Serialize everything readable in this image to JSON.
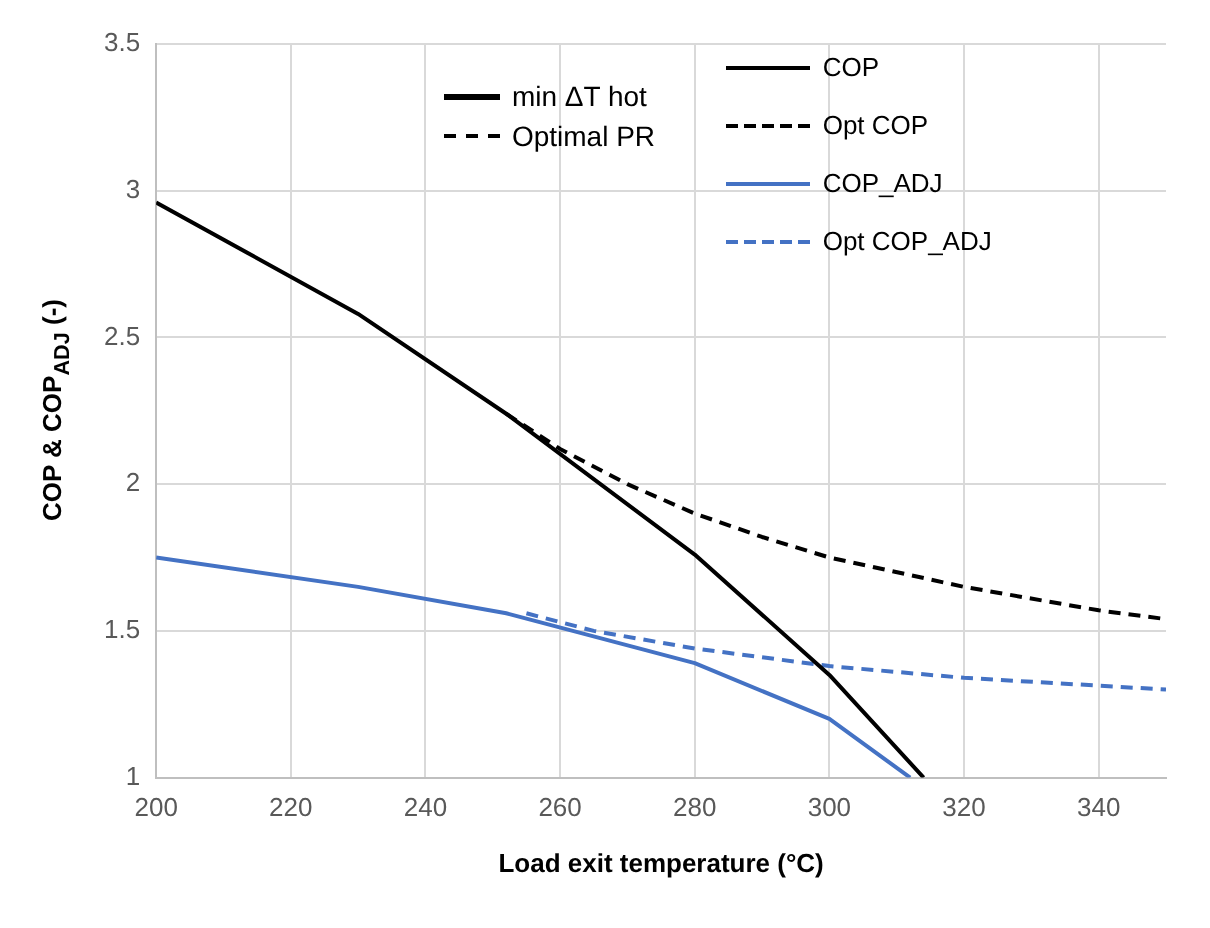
{
  "chart_data": {
    "type": "line",
    "xlabel": "Load exit temperature (°C)",
    "ylabel": "COP & COP$_{ADJ}$ (-)",
    "xlim": [
      200,
      350
    ],
    "xticks": [
      200,
      220,
      240,
      260,
      280,
      300,
      320,
      340
    ],
    "ylim": [
      1,
      3.5
    ],
    "yticks": [
      1,
      1.5,
      2,
      2.5,
      3,
      3.5
    ],
    "grid": true,
    "legend": "top right",
    "marker": "none",
    "annotations": [
      "min ΔT hot",
      "Optimal PR"
    ],
    "series": [
      {
        "name": "COP",
        "color": "#000000",
        "line_style": "solid",
        "x": [
          200,
          230,
          252,
          280,
          300,
          314
        ],
        "values": [
          2.96,
          2.58,
          2.24,
          1.76,
          1.35,
          1.0
        ]
      },
      {
        "name": "Opt COP",
        "color": "#000000",
        "line_style": "dashed",
        "x": [
          252,
          260,
          270,
          280,
          290,
          300,
          320,
          340,
          350
        ],
        "values": [
          2.24,
          2.12,
          2.0,
          1.9,
          1.82,
          1.75,
          1.65,
          1.57,
          1.54
        ]
      },
      {
        "name": "COP_ADJ",
        "color": "#4472c4",
        "line_style": "solid",
        "x": [
          200,
          230,
          252,
          280,
          300,
          312
        ],
        "values": [
          1.75,
          1.65,
          1.56,
          1.39,
          1.2,
          1.0
        ]
      },
      {
        "name": "Opt COP_ADJ",
        "color": "#4472c4",
        "line_style": "dashed",
        "x": [
          255,
          265,
          280,
          300,
          320,
          350
        ],
        "values": [
          1.56,
          1.5,
          1.44,
          1.38,
          1.34,
          1.3
        ]
      }
    ]
  }
}
